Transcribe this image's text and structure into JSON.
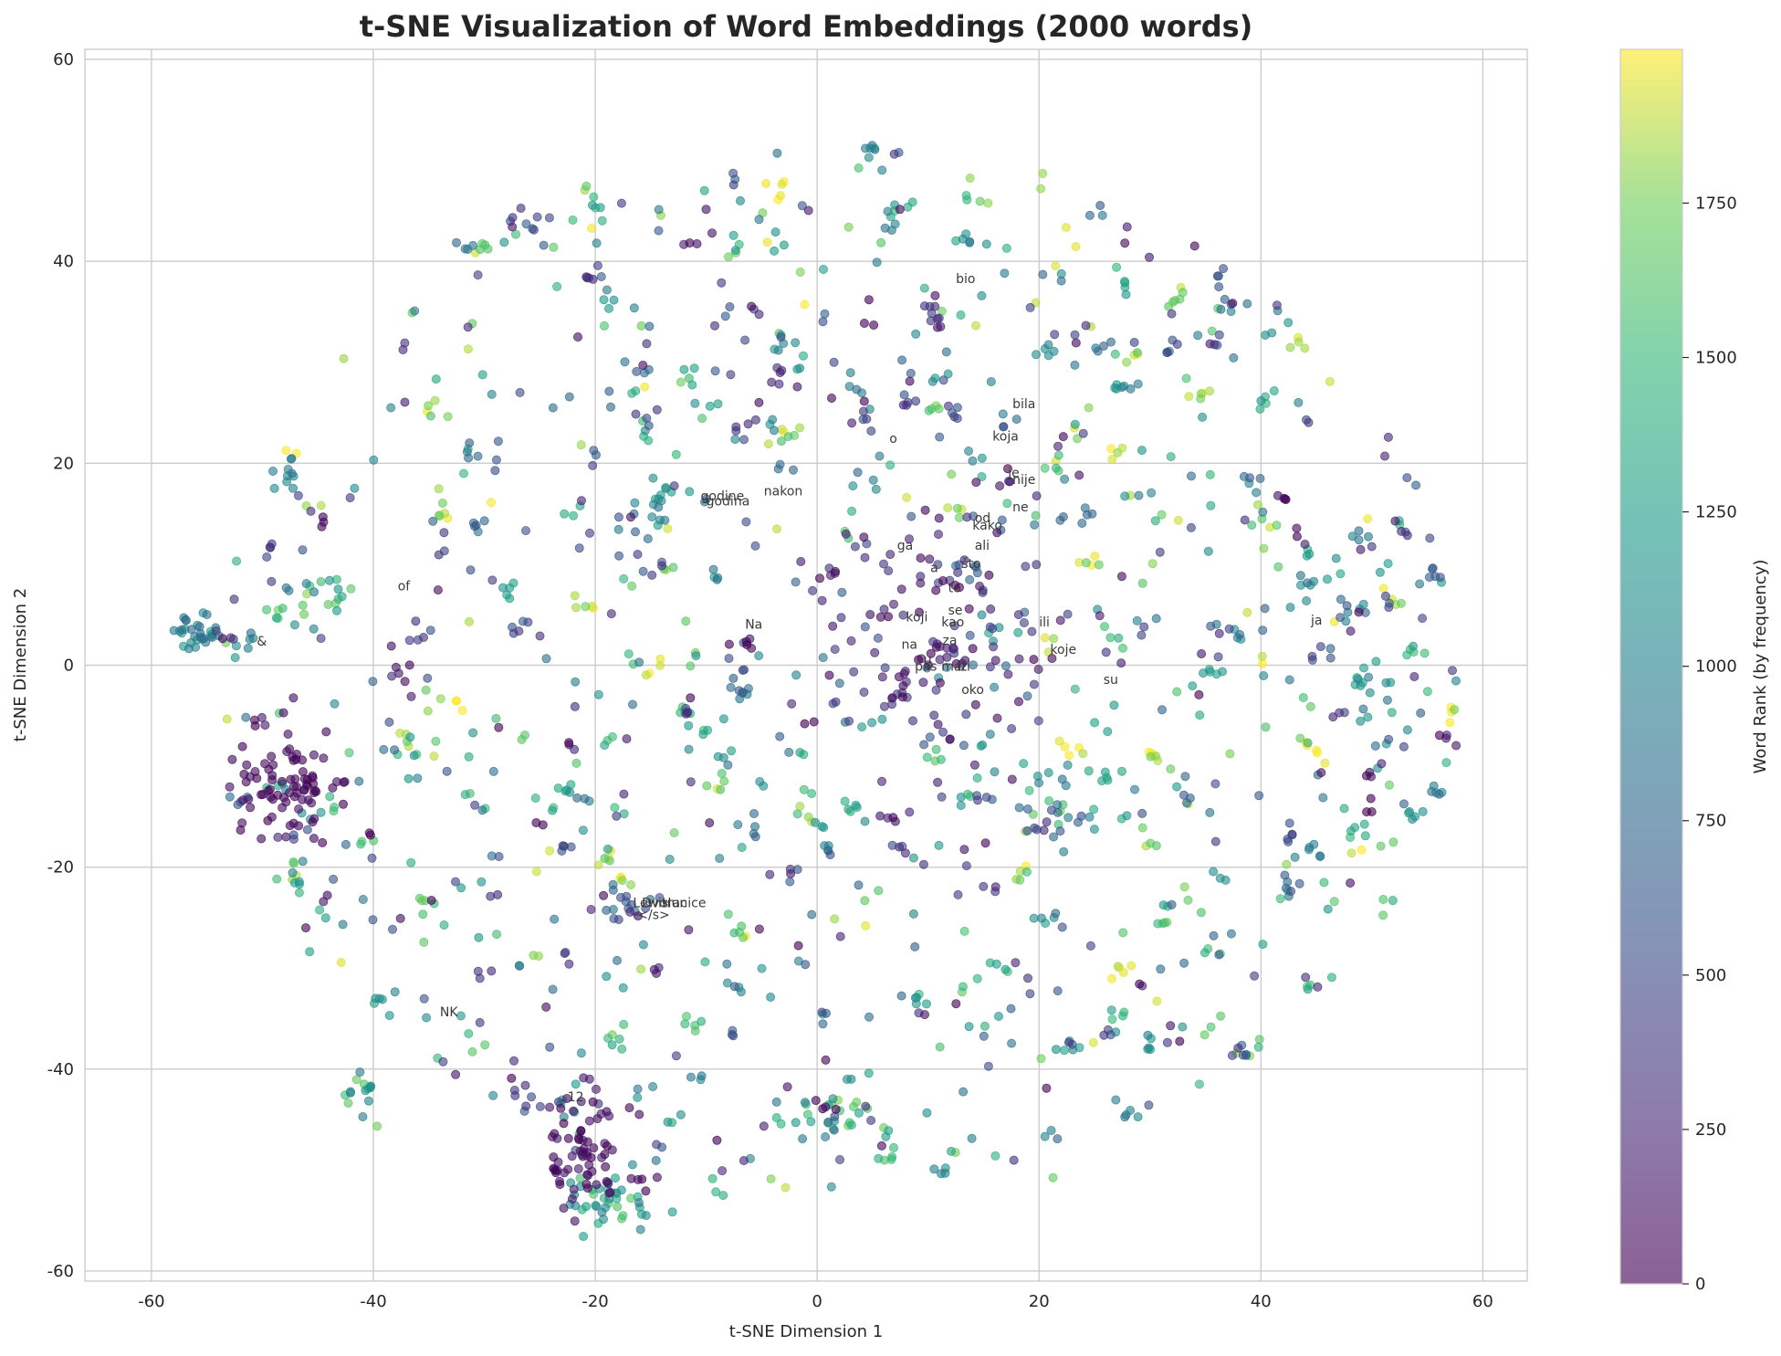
{
  "chart_data": {
    "type": "scatter",
    "title": "t-SNE Visualization of Word Embeddings (2000 words)",
    "xlabel": "t-SNE Dimension 1",
    "ylabel": "t-SNE Dimension 2",
    "xlim": [
      -66,
      64
    ],
    "ylim": [
      -61,
      61
    ],
    "xticks": [
      -60,
      -40,
      -20,
      0,
      20,
      40,
      60
    ],
    "yticks": [
      -60,
      -40,
      -20,
      0,
      20,
      40,
      60
    ],
    "grid": true,
    "colormap": "viridis",
    "colorbar": {
      "label": "Word Rank (by frequency)",
      "range": [
        0,
        1999
      ],
      "ticks": [
        0,
        250,
        500,
        750,
        1000,
        1250,
        1500,
        1750
      ]
    },
    "point_count": 2000,
    "colors": {
      "viridis_low": "#440154",
      "viridis_mid": "#21918c",
      "viridis_high": "#fde725",
      "grid": "#cccccc",
      "background": "#ffffff"
    },
    "clusters": [
      {
        "cx": -56,
        "cy": 3,
        "sx": 1.3,
        "sy": 1.0,
        "n": 30,
        "rank": [
          700,
          1300
        ]
      },
      {
        "cx": -48,
        "cy": -12,
        "sx": 2.2,
        "sy": 2.8,
        "n": 80,
        "rank": [
          0,
          120
        ]
      },
      {
        "cx": -21,
        "cy": -48,
        "sx": 2.0,
        "sy": 3.5,
        "n": 70,
        "rank": [
          0,
          200
        ]
      },
      {
        "cx": -19,
        "cy": -53,
        "sx": 2.0,
        "sy": 1.5,
        "n": 40,
        "rank": [
          900,
          1700
        ]
      },
      {
        "cx": -41,
        "cy": -42,
        "sx": 1.0,
        "sy": 1.0,
        "n": 15,
        "rank": [
          900,
          1800
        ]
      },
      {
        "cx": -45,
        "cy": 7,
        "sx": 1.5,
        "sy": 1.5,
        "n": 18,
        "rank": [
          900,
          1800
        ]
      },
      {
        "cx": 1,
        "cy": -45,
        "sx": 2.0,
        "sy": 1.5,
        "n": 25,
        "rank": [
          900,
          1800
        ]
      },
      {
        "cx": 10,
        "cy": 3,
        "sx": 6.0,
        "sy": 6.0,
        "n": 90,
        "rank": [
          0,
          500
        ]
      },
      {
        "cx": -17,
        "cy": -24,
        "sx": 1.5,
        "sy": 1.0,
        "n": 18,
        "rank": [
          0,
          900
        ]
      },
      {
        "cx": -14,
        "cy": 17,
        "sx": 1.0,
        "sy": 1.0,
        "n": 12,
        "rank": [
          1000,
          1500
        ]
      },
      {
        "cx": 22,
        "cy": -14,
        "sx": 3.0,
        "sy": 2.0,
        "n": 22,
        "rank": [
          500,
          1800
        ]
      },
      {
        "cx": 50,
        "cy": -1,
        "sx": 1.0,
        "sy": 1.0,
        "n": 10,
        "rank": [
          800,
          1300
        ]
      }
    ],
    "annotations": [
      {
        "text": "bio",
        "x": 12.5,
        "y": 38.2
      },
      {
        "text": "bila",
        "x": 17.6,
        "y": 25.8
      },
      {
        "text": "koja",
        "x": 15.8,
        "y": 22.6
      },
      {
        "text": "o",
        "x": 6.5,
        "y": 22.4
      },
      {
        "text": "je",
        "x": 17.2,
        "y": 19.0
      },
      {
        "text": "nije",
        "x": 17.6,
        "y": 18.3
      },
      {
        "text": "nakon",
        "x": -4.8,
        "y": 17.2
      },
      {
        "text": "godine",
        "x": -10.5,
        "y": 16.7
      },
      {
        "text": "godina",
        "x": -10.0,
        "y": 16.2
      },
      {
        "text": "ne",
        "x": 17.6,
        "y": 15.6
      },
      {
        "text": "od",
        "x": 14.2,
        "y": 14.5
      },
      {
        "text": "kako",
        "x": 14.0,
        "y": 13.8
      },
      {
        "text": "ga",
        "x": 7.2,
        "y": 11.8
      },
      {
        "text": "ali",
        "x": 14.2,
        "y": 11.8
      },
      {
        "text": "što",
        "x": 13.0,
        "y": 10.0
      },
      {
        "text": "a",
        "x": 10.2,
        "y": 9.6
      },
      {
        "text": "to",
        "x": 11.8,
        "y": 7.6
      },
      {
        "text": "se",
        "x": 11.8,
        "y": 5.4
      },
      {
        "text": "koji",
        "x": 8.0,
        "y": 4.7
      },
      {
        "text": "kao",
        "x": 11.2,
        "y": 4.2
      },
      {
        "text": "ili",
        "x": 20.0,
        "y": 4.2
      },
      {
        "text": "ja",
        "x": 44.5,
        "y": 4.4
      },
      {
        "text": "Na",
        "x": -6.5,
        "y": 4.0
      },
      {
        "text": "za",
        "x": 11.3,
        "y": 2.4
      },
      {
        "text": "na",
        "x": 7.6,
        "y": 2.0
      },
      {
        "text": "koje",
        "x": 21.0,
        "y": 1.5
      },
      {
        "text": "u",
        "x": 9.6,
        "y": 0.5
      },
      {
        "text": "pa",
        "x": 8.8,
        "y": -0.2
      },
      {
        "text": "s",
        "x": 10.2,
        "y": -0.2
      },
      {
        "text": "mati",
        "x": 11.2,
        "y": -0.2
      },
      {
        "text": "iz",
        "x": 12.6,
        "y": -0.2
      },
      {
        "text": "su",
        "x": 25.8,
        "y": -1.5
      },
      {
        "text": "oko",
        "x": 13.0,
        "y": -2.5
      },
      {
        "text": "&",
        "x": -50.5,
        "y": 2.3
      },
      {
        "text": "of",
        "x": -37.8,
        "y": 7.8
      },
      {
        "text": "Lewis",
        "x": -16.6,
        "y": -23.6
      },
      {
        "text": "Dvorac",
        "x": -15.8,
        "y": -23.6
      },
      {
        "text": "Hunice",
        "x": -14.0,
        "y": -23.6
      },
      {
        "text": "</s>",
        "x": -16.2,
        "y": -24.8
      },
      {
        "text": "NK",
        "x": -34.0,
        "y": -34.4
      },
      {
        "text": "12",
        "x": -22.5,
        "y": -42.8
      }
    ]
  }
}
